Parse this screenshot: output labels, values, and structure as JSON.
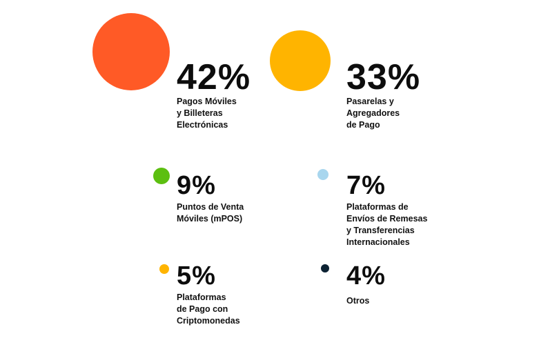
{
  "chart_data": {
    "type": "bubble-legend",
    "items": [
      {
        "value": 42,
        "display": "42%",
        "label": "Pagos Móviles\ny Billeteras\nElectrónicas",
        "color": "#ff5a26"
      },
      {
        "value": 33,
        "display": "33%",
        "label": "Pasarelas y\nAgregadores\nde Pago",
        "color": "#ffb400"
      },
      {
        "value": 9,
        "display": "9%",
        "label": "Puntos de Venta\nMóviles (mPOS)",
        "color": "#5cbf10"
      },
      {
        "value": 7,
        "display": "7%",
        "label": "Plataformas de\nEnvíos de Remesas\ny Transferencias\nInternacionales",
        "color": "#a8d6ee"
      },
      {
        "value": 5,
        "display": "5%",
        "label": "Plataformas\nde Pago con\nCriptomonedas",
        "color": "#ffb400"
      },
      {
        "value": 4,
        "display": "4%",
        "label": "Otros",
        "color": "#0c2233"
      }
    ]
  }
}
